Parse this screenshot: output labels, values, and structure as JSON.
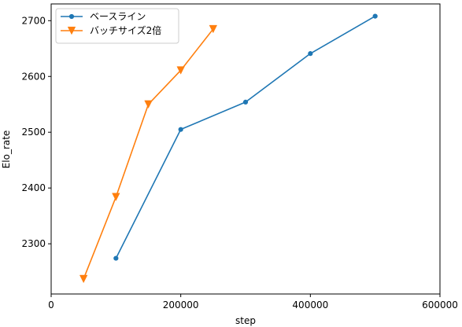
{
  "chart_data": {
    "type": "line",
    "xlabel": "step",
    "ylabel": "Elo_rate",
    "xlim": [
      0,
      600000
    ],
    "ylim": [
      2210,
      2730
    ],
    "xticks": [
      0,
      200000,
      400000,
      600000
    ],
    "yticks": [
      2300,
      2400,
      2500,
      2600,
      2700
    ],
    "grid": false,
    "legend_position": "top-left",
    "series": [
      {
        "name": "ベースライン",
        "color": "#1f77b4",
        "marker": "circle",
        "x": [
          100000,
          200000,
          300000,
          400000,
          500000
        ],
        "y": [
          2274,
          2505,
          2554,
          2641,
          2708
        ]
      },
      {
        "name": "バッチサイズ2倍",
        "color": "#ff7f0e",
        "marker": "triangle-down",
        "x": [
          50000,
          100000,
          150000,
          200000,
          250000
        ],
        "y": [
          2237,
          2384,
          2550,
          2611,
          2685
        ]
      }
    ]
  }
}
